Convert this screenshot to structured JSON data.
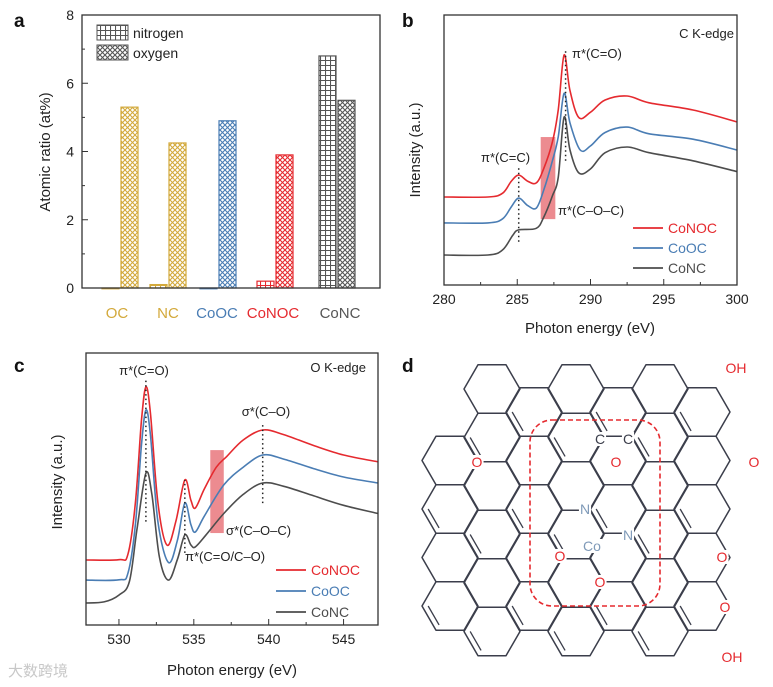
{
  "figure": {
    "panel_labels": [
      "a",
      "b",
      "c",
      "d"
    ],
    "watermark": "大数跨境"
  },
  "colors": {
    "OC": "#d3a93b",
    "NC": "#d3a93b",
    "CoOC": "#4a7db4",
    "CoNOC": "#e52a2f",
    "CoNC": "#555555",
    "shade": "#e9777c",
    "bond": "#3b3e4b",
    "oxygen_atom": "#e52a2f",
    "nitrogen_atom": "#7f9ab8",
    "dashed_box": "#e52a2f"
  },
  "chart_data": [
    {
      "panel": "a",
      "type": "bar",
      "categories": [
        "OC",
        "NC",
        "CoOC",
        "CoNOC",
        "CoNC"
      ],
      "series": [
        {
          "name": "nitrogen",
          "pattern": "grid",
          "values": [
            0,
            0.1,
            0,
            0.2,
            6.8
          ]
        },
        {
          "name": "oxygen",
          "pattern": "crosshatch",
          "values": [
            5.3,
            4.25,
            4.9,
            3.9,
            5.5
          ]
        }
      ],
      "xlabel": "",
      "ylabel": "Atomic ratio (at%)",
      "ylim": [
        0,
        8
      ],
      "yticks": [
        0,
        2,
        4,
        6,
        8
      ],
      "legend": "top-left",
      "grid": false
    },
    {
      "panel": "b",
      "type": "line",
      "title": "C K-edge",
      "xlabel": "Photon energy (eV)",
      "ylabel": "Intensity (a.u.)",
      "xlim": [
        280,
        300
      ],
      "xticks": [
        280,
        285,
        290,
        295,
        300
      ],
      "ylim": [
        0,
        1
      ],
      "legend": "bottom-right",
      "annotations": [
        "π*(C=O)",
        "π*(C=C)",
        "π*(C–O–C)"
      ],
      "dotted_lines": [
        {
          "x": 285.1,
          "y0": 0.16,
          "y1": 0.437
        },
        {
          "x": 288.3,
          "y0": 0.46,
          "y1": 0.87
        }
      ],
      "shaded_region": {
        "x0": 286.6,
        "x1": 287.6,
        "y0": 0.244,
        "y1": 0.548
      },
      "series": [
        {
          "name": "CoNOC",
          "color": "#e52a2f",
          "points": [
            [
              280,
              0.326
            ],
            [
              283,
              0.326
            ],
            [
              284,
              0.34
            ],
            [
              284.6,
              0.385
            ],
            [
              285.1,
              0.407
            ],
            [
              285.7,
              0.385
            ],
            [
              286.3,
              0.378
            ],
            [
              286.8,
              0.43
            ],
            [
              287.4,
              0.53
            ],
            [
              287.8,
              0.65
            ],
            [
              288.2,
              0.852
            ],
            [
              288.6,
              0.72
            ],
            [
              289.2,
              0.62
            ],
            [
              290,
              0.64
            ],
            [
              291,
              0.685
            ],
            [
              292.5,
              0.7
            ],
            [
              294,
              0.675
            ],
            [
              297,
              0.648
            ],
            [
              300,
              0.604
            ]
          ]
        },
        {
          "name": "CoOC",
          "color": "#4a7db4",
          "points": [
            [
              280,
              0.23
            ],
            [
              283,
              0.23
            ],
            [
              284,
              0.245
            ],
            [
              284.6,
              0.29
            ],
            [
              285.1,
              0.322
            ],
            [
              285.7,
              0.295
            ],
            [
              286.3,
              0.285
            ],
            [
              286.8,
              0.35
            ],
            [
              287.4,
              0.46
            ],
            [
              287.8,
              0.55
            ],
            [
              288.2,
              0.71
            ],
            [
              288.6,
              0.6
            ],
            [
              289.3,
              0.5
            ],
            [
              290,
              0.515
            ],
            [
              291,
              0.565
            ],
            [
              292.5,
              0.585
            ],
            [
              294,
              0.56
            ],
            [
              297,
              0.54
            ],
            [
              300,
              0.5
            ]
          ]
        },
        {
          "name": "CoNC",
          "color": "#4d4d4d",
          "points": [
            [
              280,
              0.111
            ],
            [
              283,
              0.111
            ],
            [
              284,
              0.13
            ],
            [
              284.7,
              0.185
            ],
            [
              285.1,
              0.204
            ],
            [
              286.3,
              0.21
            ],
            [
              286.8,
              0.25
            ],
            [
              287.4,
              0.33
            ],
            [
              287.8,
              0.4
            ],
            [
              288.2,
              0.622
            ],
            [
              288.6,
              0.5
            ],
            [
              289.2,
              0.415
            ],
            [
              290,
              0.43
            ],
            [
              291,
              0.49
            ],
            [
              292.5,
              0.511
            ],
            [
              294,
              0.49
            ],
            [
              297,
              0.46
            ],
            [
              300,
              0.42
            ]
          ]
        }
      ]
    },
    {
      "panel": "c",
      "type": "line",
      "title": "O K-edge",
      "xlabel": "Photon energy (eV)",
      "ylabel": "Intensity (a.u.)",
      "xlim": [
        527.8,
        547.3
      ],
      "xticks": [
        530,
        535,
        540,
        545
      ],
      "ylim": [
        0,
        1
      ],
      "legend": "bottom-right",
      "annotations": [
        "π*(C=O)",
        "σ*(C–O)",
        "σ*(C–O–C)",
        "π*(C=O/C–O)"
      ],
      "dotted_lines": [
        {
          "x": 531.8,
          "y0": 0.38,
          "y1": 0.9
        },
        {
          "x": 534.4,
          "y0": 0.265,
          "y1": 0.533
        },
        {
          "x": 539.6,
          "y0": 0.448,
          "y1": 0.746
        }
      ],
      "shaded_region": {
        "x0": 536.1,
        "x1": 537.0,
        "y0": 0.338,
        "y1": 0.643
      },
      "series": [
        {
          "name": "CoNOC",
          "color": "#e52a2f",
          "points": [
            [
              527.8,
              0.239
            ],
            [
              530,
              0.24
            ],
            [
              530.6,
              0.26
            ],
            [
              531.1,
              0.45
            ],
            [
              531.5,
              0.75
            ],
            [
              531.8,
              0.875
            ],
            [
              532.1,
              0.78
            ],
            [
              532.6,
              0.45
            ],
            [
              533.2,
              0.294
            ],
            [
              533.8,
              0.38
            ],
            [
              534.4,
              0.533
            ],
            [
              534.8,
              0.46
            ],
            [
              535.1,
              0.43
            ],
            [
              535.7,
              0.5
            ],
            [
              536.5,
              0.58
            ],
            [
              537.2,
              0.62
            ],
            [
              538.3,
              0.68
            ],
            [
              539.6,
              0.717
            ],
            [
              541,
              0.7
            ],
            [
              543,
              0.66
            ],
            [
              545,
              0.625
            ],
            [
              547.3,
              0.6
            ]
          ]
        },
        {
          "name": "CoOC",
          "color": "#4a7db4",
          "points": [
            [
              527.8,
              0.165
            ],
            [
              530,
              0.166
            ],
            [
              530.6,
              0.19
            ],
            [
              531.1,
              0.37
            ],
            [
              531.5,
              0.66
            ],
            [
              531.8,
              0.79
            ],
            [
              532.1,
              0.7
            ],
            [
              532.6,
              0.38
            ],
            [
              533.3,
              0.23
            ],
            [
              533.9,
              0.31
            ],
            [
              534.4,
              0.448
            ],
            [
              534.8,
              0.37
            ],
            [
              535.1,
              0.342
            ],
            [
              535.7,
              0.4
            ],
            [
              537,
              0.515
            ],
            [
              538.3,
              0.58
            ],
            [
              539.6,
              0.625
            ],
            [
              541,
              0.61
            ],
            [
              543,
              0.575
            ],
            [
              545,
              0.544
            ],
            [
              547.3,
              0.522
            ]
          ]
        },
        {
          "name": "CoNC",
          "color": "#4d4d4d",
          "points": [
            [
              527.8,
              0.081
            ],
            [
              529,
              0.085
            ],
            [
              530,
              0.11
            ],
            [
              530.7,
              0.16
            ],
            [
              531.2,
              0.35
            ],
            [
              531.8,
              0.558
            ],
            [
              532.2,
              0.48
            ],
            [
              532.7,
              0.25
            ],
            [
              533.3,
              0.165
            ],
            [
              533.9,
              0.24
            ],
            [
              534.4,
              0.331
            ],
            [
              534.8,
              0.295
            ],
            [
              535.1,
              0.287
            ],
            [
              535.8,
              0.33
            ],
            [
              537,
              0.41
            ],
            [
              538.3,
              0.48
            ],
            [
              539.6,
              0.522
            ],
            [
              541,
              0.51
            ],
            [
              543,
              0.475
            ],
            [
              545,
              0.44
            ],
            [
              547.3,
              0.41
            ]
          ]
        }
      ]
    }
  ],
  "diagram": {
    "atoms": [
      "C",
      "C",
      "O",
      "N",
      "N",
      "Co",
      "O",
      "O",
      "O",
      "OH",
      "O",
      "O",
      "O",
      "OH"
    ]
  }
}
